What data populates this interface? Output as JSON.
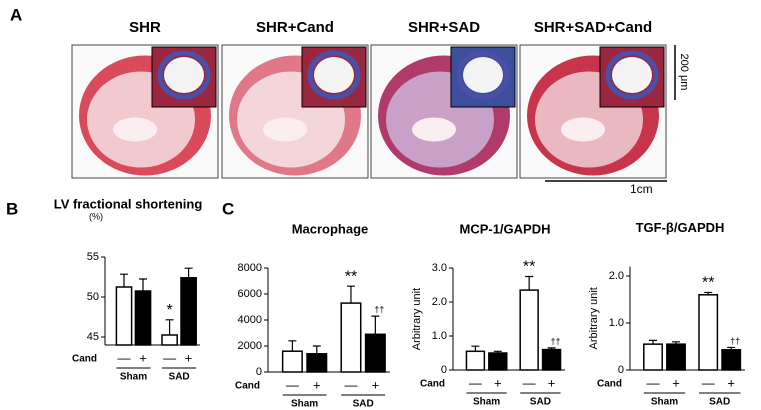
{
  "figure": {
    "panel_labels": [
      "A",
      "B",
      "C"
    ],
    "images": [
      {
        "title": "SHR"
      },
      {
        "title": "SHR+Cand"
      },
      {
        "title": "SHR+SAD"
      },
      {
        "title": "SHR+SAD+Cand"
      }
    ],
    "scale_labels": [
      "200 μm",
      "1cm"
    ]
  },
  "chart_data": [
    {
      "type": "bar",
      "title": "LV fractional shortening",
      "yunit": "(%)",
      "categories": [
        "—",
        "+",
        "—",
        "+"
      ],
      "groups": [
        "Sham",
        "SAD"
      ],
      "xlabel": "Cand",
      "values": [
        51.25,
        50.75,
        45.25,
        52.4
      ],
      "errors": [
        1.6,
        1.5,
        1.9,
        1.2
      ],
      "colors": [
        "#ffffff",
        "#000000",
        "#ffffff",
        "#000000"
      ],
      "significance": [
        null,
        null,
        "*",
        null
      ],
      "ylim": [
        44,
        55
      ],
      "yticks": [
        45,
        50,
        55
      ]
    },
    {
      "type": "bar",
      "title": "Macrophage",
      "categories": [
        "—",
        "+",
        "—",
        "+"
      ],
      "groups": [
        "Sham",
        "SAD"
      ],
      "xlabel": "Cand",
      "values": [
        1600,
        1400,
        5300,
        2900
      ],
      "errors": [
        800,
        600,
        1300,
        1400
      ],
      "colors": [
        "#ffffff",
        "#000000",
        "#ffffff",
        "#000000"
      ],
      "significance": [
        null,
        null,
        "**",
        "††"
      ],
      "ylim": [
        0,
        8000
      ],
      "yticks": [
        0,
        2000,
        4000,
        6000,
        8000
      ]
    },
    {
      "type": "bar",
      "title": "MCP-1/GAPDH",
      "ylabel": "Arbitrary unit",
      "categories": [
        "—",
        "+",
        "—",
        "+"
      ],
      "groups": [
        "Sham",
        "SAD"
      ],
      "xlabel": "Cand",
      "values": [
        0.55,
        0.5,
        2.35,
        0.6
      ],
      "errors": [
        0.15,
        0.05,
        0.4,
        0.05
      ],
      "colors": [
        "#ffffff",
        "#000000",
        "#ffffff",
        "#000000"
      ],
      "significance": [
        null,
        null,
        "**",
        "††"
      ],
      "ylim": [
        0,
        3.0
      ],
      "yticks": [
        0,
        {
          "value": 1.0,
          "label": "1.0"
        },
        {
          "value": 2.0,
          "label": "2.0"
        },
        {
          "value": 3.0,
          "label": "3.0"
        }
      ]
    },
    {
      "type": "bar",
      "title": "TGF-β/GAPDH",
      "ylabel": "Arbitrary unit",
      "categories": [
        "—",
        "+",
        "—",
        "+"
      ],
      "groups": [
        "Sham",
        "SAD"
      ],
      "xlabel": "Cand",
      "values": [
        0.55,
        0.55,
        1.6,
        0.43
      ],
      "errors": [
        0.08,
        0.05,
        0.05,
        0.05
      ],
      "colors": [
        "#ffffff",
        "#000000",
        "#ffffff",
        "#000000"
      ],
      "significance": [
        null,
        null,
        "**",
        "††"
      ],
      "ylim": [
        0,
        2.2
      ],
      "yticks": [
        0,
        {
          "value": 1.0,
          "label": "1.0"
        },
        {
          "value": 2.0,
          "label": "2.0"
        }
      ]
    }
  ]
}
